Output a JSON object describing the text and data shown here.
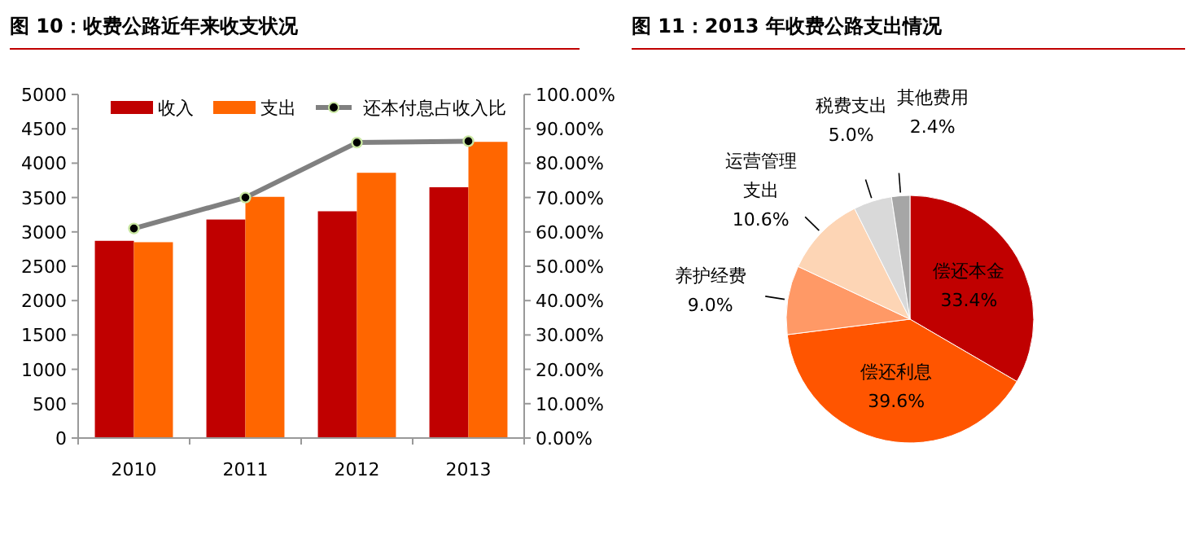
{
  "chart_data": [
    {
      "type": "bar",
      "title": "图 10：收费公路近年来收支状况",
      "categories": [
        "2010",
        "2011",
        "2012",
        "2013"
      ],
      "series": [
        {
          "name": "收入",
          "color": "#c00000",
          "values": [
            2870,
            3180,
            3300,
            3650
          ]
        },
        {
          "name": "支出",
          "color": "#ff6600",
          "values": [
            2850,
            3510,
            3860,
            4310
          ]
        },
        {
          "name": "还本付息占收入比",
          "type": "line",
          "axis": "y2",
          "color": "#808080",
          "marker": "circle",
          "values": [
            61.0,
            70.0,
            86.0,
            86.4
          ]
        }
      ],
      "ylim": [
        0,
        5000
      ],
      "yticks": [
        0,
        500,
        1000,
        1500,
        2000,
        2500,
        3000,
        3500,
        4000,
        4500,
        5000
      ],
      "y2lim": [
        0,
        100
      ],
      "y2ticks": [
        {
          "value": 0,
          "label": "0.00%"
        },
        {
          "value": 10,
          "label": "10.00%"
        },
        {
          "value": 20,
          "label": "20.00%"
        },
        {
          "value": 30,
          "label": "30.00%"
        },
        {
          "value": 40,
          "label": "40.00%"
        },
        {
          "value": 50,
          "label": "50.00%"
        },
        {
          "value": 60,
          "label": "60.00%"
        },
        {
          "value": 70,
          "label": "70.00%"
        },
        {
          "value": 80,
          "label": "80.00%"
        },
        {
          "value": 90,
          "label": "90.00%"
        },
        {
          "value": 100,
          "label": "100.00%"
        }
      ],
      "grid": false,
      "legend": "top"
    },
    {
      "type": "pie",
      "title": "图 11：2013 年收费公路支出情况",
      "categories": [
        "偿还本金",
        "偿还利息",
        "养护经费",
        "运营管理支出",
        "税费支出",
        "其他费用"
      ],
      "values": [
        33.4,
        39.6,
        9.0,
        10.6,
        5.0,
        2.4
      ],
      "colors": [
        "#c00000",
        "#ff5500",
        "#ff9966",
        "#fdd5b5",
        "#d9d9d9",
        "#a6a6a6"
      ],
      "value_labels": [
        "33.4%",
        "39.6%",
        "9.0%",
        "10.6%",
        "5.0%",
        "2.4%"
      ]
    }
  ]
}
